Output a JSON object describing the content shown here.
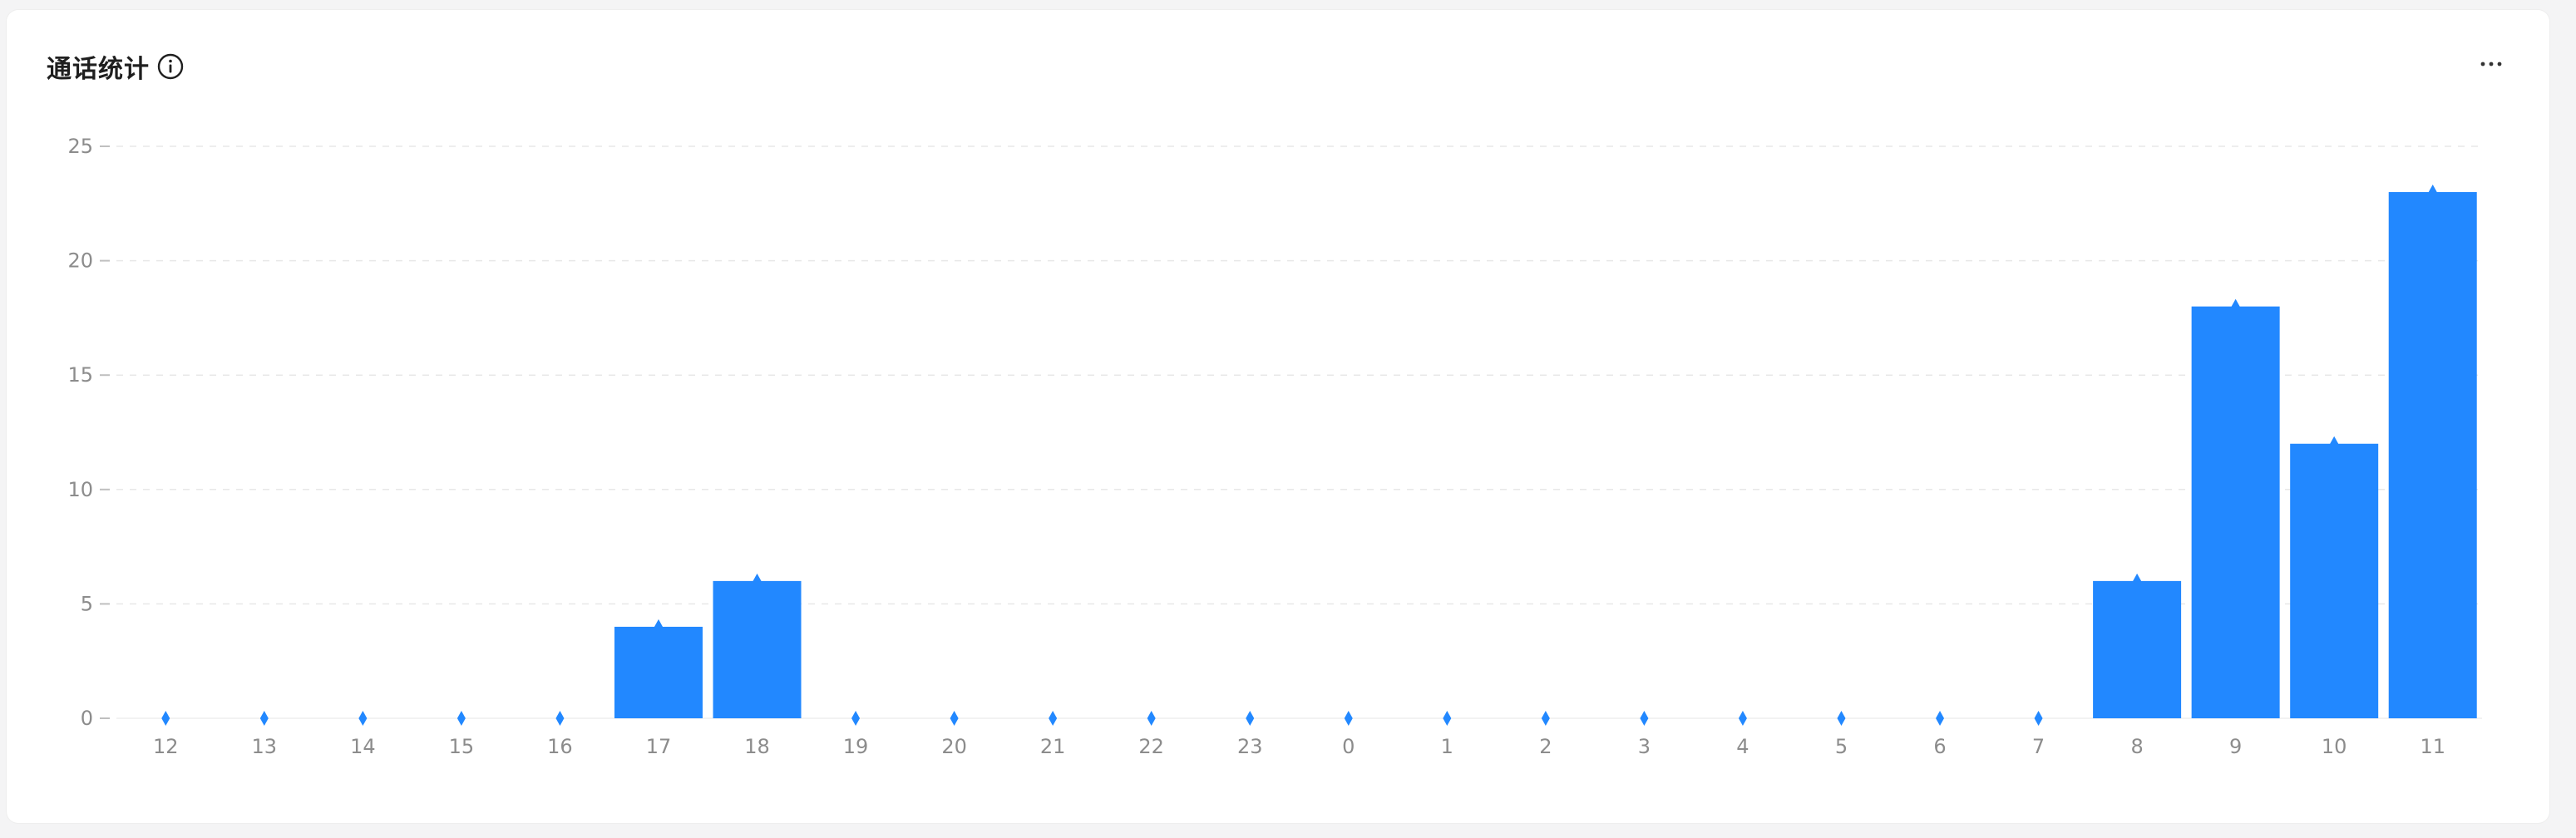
{
  "card": {
    "title": "通话统计",
    "info_icon": "info-circle-icon",
    "more_icon": "more-horizontal-icon"
  },
  "colors": {
    "bar": "#2288ff",
    "marker": "#2288ff",
    "grid": "#e8e8e8",
    "axis_text": "#8c8c8c",
    "title": "#1f1f1f"
  },
  "chart_data": {
    "type": "bar",
    "title": "通话统计",
    "xlabel": "",
    "ylabel": "",
    "categories": [
      "12",
      "13",
      "14",
      "15",
      "16",
      "17",
      "18",
      "19",
      "20",
      "21",
      "22",
      "23",
      "0",
      "1",
      "2",
      "3",
      "4",
      "5",
      "6",
      "7",
      "8",
      "9",
      "10",
      "11"
    ],
    "values": [
      0,
      0,
      0,
      0,
      0,
      4,
      6,
      0,
      0,
      0,
      0,
      0,
      0,
      0,
      0,
      0,
      0,
      0,
      0,
      0,
      6,
      18,
      12,
      23
    ],
    "ylim": [
      0,
      25
    ],
    "yticks": [
      0,
      5,
      10,
      15,
      20,
      25
    ],
    "grid": true,
    "legend": "none",
    "point_markers": "diamond"
  }
}
